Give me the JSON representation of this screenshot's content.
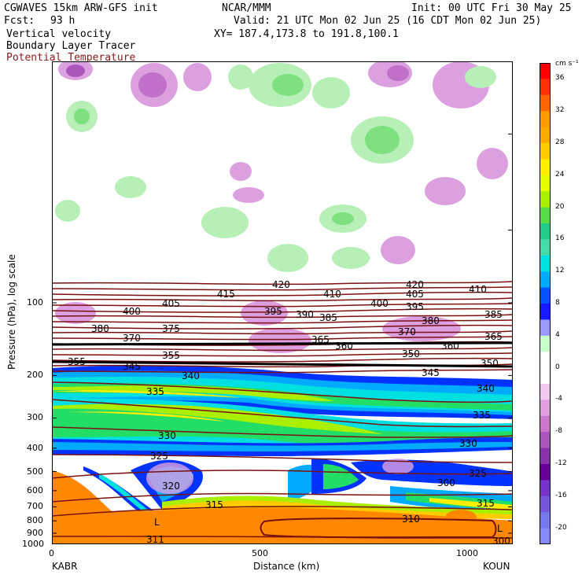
{
  "header": {
    "model": "CGWAVES 15km ARW-GFS init",
    "org": "NCAR/MMM",
    "init": "Init: 00 UTC Fri 30 May 25",
    "fcst_label": "Fcst:",
    "fcst_value": "93 h",
    "valid": "Valid: 21 UTC Mon 02 Jun 25 (16 CDT Mon 02 Jun 25)",
    "xy": "XY= 187.4,173.8 to 191.8,100.1",
    "field1": "Vertical velocity",
    "field2": "Boundary Layer Tracer",
    "field3": "Potential Temperature",
    "field3_color": "#8b1a1a"
  },
  "chart_data": {
    "type": "heatmap",
    "xlabel": "Distance (km)",
    "ylabel": "Pressure (hPa), log scale",
    "x_ticks": [
      "0",
      "500",
      "1000"
    ],
    "x_endpoints": [
      "KABR",
      "KOUN"
    ],
    "xlim": [
      0,
      1100
    ],
    "y_scale": "log",
    "ylim": [
      1000,
      10
    ],
    "y_ticks": [
      100,
      200,
      300,
      400,
      500,
      600,
      700,
      800,
      900,
      1000
    ],
    "colorbar": {
      "units": "cm s⁻¹",
      "labels": [
        "36",
        "32",
        "28",
        "24",
        "20",
        "16",
        "12",
        "8",
        "4",
        "0",
        "-4",
        "-8",
        "-12",
        "-16",
        "-20"
      ],
      "colors": [
        "#ff0000",
        "#ff3300",
        "#ff6600",
        "#ff9900",
        "#ffaa00",
        "#ffcc00",
        "#ffee00",
        "#e6ff00",
        "#aaee00",
        "#55dd44",
        "#22cc88",
        "#44ddaa",
        "#00e0e0",
        "#00aaff",
        "#0055ff",
        "#1a1aff",
        "#9999ff",
        "#c8ffc8",
        "#ffffff",
        "#ffffff",
        "#f0c8f0",
        "#e0a0e0",
        "#cc77cc",
        "#aa55bb",
        "#8833aa",
        "#660099",
        "#7733cc",
        "#7755dd",
        "#7777ee",
        "#8888ff"
      ]
    },
    "theta_labels": [
      "420",
      "420",
      "415",
      "410",
      "410",
      "405",
      "405",
      "400",
      "400",
      "395",
      "395",
      "390",
      "385",
      "385",
      "380",
      "380",
      "375",
      "370",
      "370",
      "365",
      "365",
      "360",
      "360",
      "355",
      "355",
      "350",
      "350",
      "345",
      "345",
      "340",
      "340",
      "335",
      "335",
      "330",
      "330",
      "325",
      "325",
      "320",
      "315",
      "315",
      "310",
      "311",
      "300",
      "300"
    ],
    "markers": [
      "L",
      "L"
    ]
  }
}
